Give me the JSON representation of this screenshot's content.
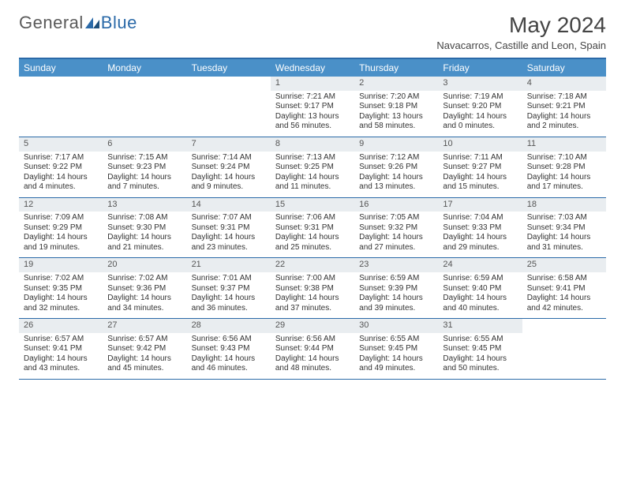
{
  "logo": {
    "part1": "General",
    "part2": "Blue"
  },
  "title": "May 2024",
  "location": "Navacarros, Castille and Leon, Spain",
  "colors": {
    "header_bar": "#4a90c8",
    "rule": "#2b6aa8",
    "daynum_bg": "#e9edf0",
    "text": "#333333",
    "logo_blue": "#2b6aa8"
  },
  "day_names": [
    "Sunday",
    "Monday",
    "Tuesday",
    "Wednesday",
    "Thursday",
    "Friday",
    "Saturday"
  ],
  "labels": {
    "sunrise": "Sunrise:",
    "sunset": "Sunset:",
    "daylight": "Daylight:"
  },
  "weeks": [
    [
      null,
      null,
      null,
      {
        "n": "1",
        "sr": "7:21 AM",
        "ss": "9:17 PM",
        "dl": "13 hours and 56 minutes."
      },
      {
        "n": "2",
        "sr": "7:20 AM",
        "ss": "9:18 PM",
        "dl": "13 hours and 58 minutes."
      },
      {
        "n": "3",
        "sr": "7:19 AM",
        "ss": "9:20 PM",
        "dl": "14 hours and 0 minutes."
      },
      {
        "n": "4",
        "sr": "7:18 AM",
        "ss": "9:21 PM",
        "dl": "14 hours and 2 minutes."
      }
    ],
    [
      {
        "n": "5",
        "sr": "7:17 AM",
        "ss": "9:22 PM",
        "dl": "14 hours and 4 minutes."
      },
      {
        "n": "6",
        "sr": "7:15 AM",
        "ss": "9:23 PM",
        "dl": "14 hours and 7 minutes."
      },
      {
        "n": "7",
        "sr": "7:14 AM",
        "ss": "9:24 PM",
        "dl": "14 hours and 9 minutes."
      },
      {
        "n": "8",
        "sr": "7:13 AM",
        "ss": "9:25 PM",
        "dl": "14 hours and 11 minutes."
      },
      {
        "n": "9",
        "sr": "7:12 AM",
        "ss": "9:26 PM",
        "dl": "14 hours and 13 minutes."
      },
      {
        "n": "10",
        "sr": "7:11 AM",
        "ss": "9:27 PM",
        "dl": "14 hours and 15 minutes."
      },
      {
        "n": "11",
        "sr": "7:10 AM",
        "ss": "9:28 PM",
        "dl": "14 hours and 17 minutes."
      }
    ],
    [
      {
        "n": "12",
        "sr": "7:09 AM",
        "ss": "9:29 PM",
        "dl": "14 hours and 19 minutes."
      },
      {
        "n": "13",
        "sr": "7:08 AM",
        "ss": "9:30 PM",
        "dl": "14 hours and 21 minutes."
      },
      {
        "n": "14",
        "sr": "7:07 AM",
        "ss": "9:31 PM",
        "dl": "14 hours and 23 minutes."
      },
      {
        "n": "15",
        "sr": "7:06 AM",
        "ss": "9:31 PM",
        "dl": "14 hours and 25 minutes."
      },
      {
        "n": "16",
        "sr": "7:05 AM",
        "ss": "9:32 PM",
        "dl": "14 hours and 27 minutes."
      },
      {
        "n": "17",
        "sr": "7:04 AM",
        "ss": "9:33 PM",
        "dl": "14 hours and 29 minutes."
      },
      {
        "n": "18",
        "sr": "7:03 AM",
        "ss": "9:34 PM",
        "dl": "14 hours and 31 minutes."
      }
    ],
    [
      {
        "n": "19",
        "sr": "7:02 AM",
        "ss": "9:35 PM",
        "dl": "14 hours and 32 minutes."
      },
      {
        "n": "20",
        "sr": "7:02 AM",
        "ss": "9:36 PM",
        "dl": "14 hours and 34 minutes."
      },
      {
        "n": "21",
        "sr": "7:01 AM",
        "ss": "9:37 PM",
        "dl": "14 hours and 36 minutes."
      },
      {
        "n": "22",
        "sr": "7:00 AM",
        "ss": "9:38 PM",
        "dl": "14 hours and 37 minutes."
      },
      {
        "n": "23",
        "sr": "6:59 AM",
        "ss": "9:39 PM",
        "dl": "14 hours and 39 minutes."
      },
      {
        "n": "24",
        "sr": "6:59 AM",
        "ss": "9:40 PM",
        "dl": "14 hours and 40 minutes."
      },
      {
        "n": "25",
        "sr": "6:58 AM",
        "ss": "9:41 PM",
        "dl": "14 hours and 42 minutes."
      }
    ],
    [
      {
        "n": "26",
        "sr": "6:57 AM",
        "ss": "9:41 PM",
        "dl": "14 hours and 43 minutes."
      },
      {
        "n": "27",
        "sr": "6:57 AM",
        "ss": "9:42 PM",
        "dl": "14 hours and 45 minutes."
      },
      {
        "n": "28",
        "sr": "6:56 AM",
        "ss": "9:43 PM",
        "dl": "14 hours and 46 minutes."
      },
      {
        "n": "29",
        "sr": "6:56 AM",
        "ss": "9:44 PM",
        "dl": "14 hours and 48 minutes."
      },
      {
        "n": "30",
        "sr": "6:55 AM",
        "ss": "9:45 PM",
        "dl": "14 hours and 49 minutes."
      },
      {
        "n": "31",
        "sr": "6:55 AM",
        "ss": "9:45 PM",
        "dl": "14 hours and 50 minutes."
      },
      null
    ]
  ]
}
